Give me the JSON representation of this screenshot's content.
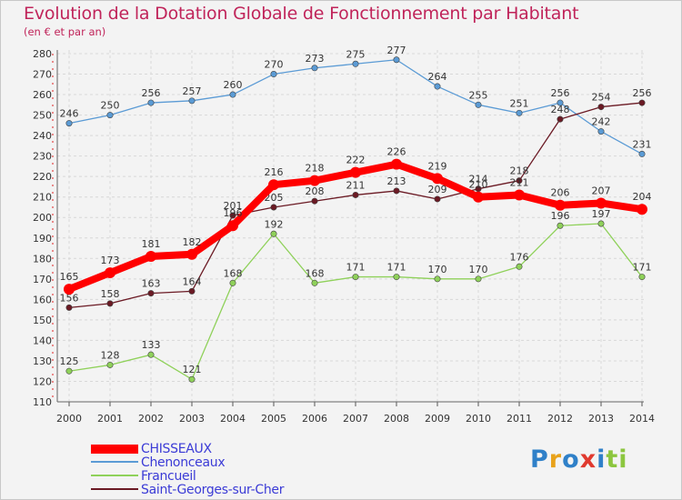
{
  "title": "Evolution de la Dotation Globale de Fonctionnement par Habitant",
  "subtitle": "(en € et par an)",
  "chart_data": {
    "type": "line",
    "x": [
      "2000",
      "2001",
      "2002",
      "2003",
      "2004",
      "2005",
      "2006",
      "2007",
      "2008",
      "2009",
      "2010",
      "2011",
      "2012",
      "2013",
      "2014"
    ],
    "ylim": [
      110,
      280
    ],
    "yticks": [
      110,
      120,
      130,
      140,
      150,
      160,
      170,
      180,
      190,
      200,
      210,
      220,
      230,
      240,
      250,
      260,
      270,
      280
    ],
    "grid": true,
    "series": [
      {
        "name": "Chenonceaux",
        "color": "#5b9bd5",
        "values": [
          246,
          250,
          256,
          257,
          260,
          270,
          273,
          275,
          277,
          264,
          255,
          251,
          256,
          242,
          231
        ]
      },
      {
        "name": "Francueil",
        "color": "#8fd15a",
        "values": [
          125,
          128,
          133,
          121,
          168,
          192,
          168,
          171,
          171,
          170,
          170,
          176,
          196,
          197,
          171
        ]
      },
      {
        "name": "Saint-Georges-sur-Cher",
        "color": "#6b1a24",
        "values": [
          156,
          158,
          163,
          164,
          201,
          205,
          208,
          211,
          213,
          209,
          214,
          218,
          248,
          254,
          256
        ]
      },
      {
        "name": "CHISSEAUX",
        "color": "#ff0000",
        "values": [
          165,
          173,
          181,
          182,
          196,
          216,
          218,
          222,
          226,
          219,
          210,
          211,
          206,
          207,
          204
        ]
      }
    ]
  },
  "legend": [
    {
      "name": "CHISSEAUX",
      "color": "#ff0000"
    },
    {
      "name": "Chenonceaux",
      "color": "#5b9bd5"
    },
    {
      "name": "Francueil",
      "color": "#8fd15a"
    },
    {
      "name": "Saint-Georges-sur-Cher",
      "color": "#6b1a24"
    }
  ],
  "logo": {
    "letters": [
      "P",
      "r",
      "o",
      "x",
      "i",
      "t",
      "i"
    ],
    "colors": [
      "#2f80c8",
      "#e8a21b",
      "#2f80c8",
      "#e03a2f",
      "#2f80c8",
      "#8cc63f",
      "#8cc63f"
    ]
  }
}
